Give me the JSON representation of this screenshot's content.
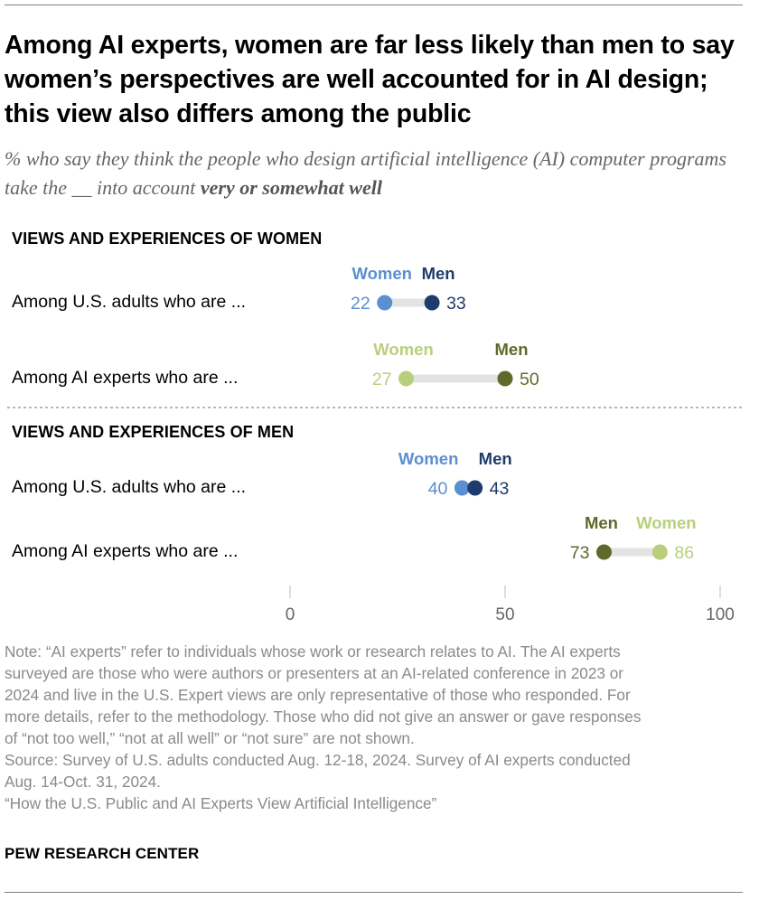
{
  "title": "Among AI experts, women are far less likely than men to say women’s perspectives are well accounted for in AI design; this view also differs among the public",
  "subtitle": {
    "prefix": "% who say they think the people who design artificial intelligence (AI) computer programs take the __ into account",
    "emphasis": "very or somewhat well"
  },
  "colors": {
    "public_women": "#5b8fd1",
    "public_men": "#1f3b6b",
    "experts_women": "#b9cf7c",
    "experts_men": "#5e6a2a",
    "track": "#e3e3e3",
    "divider": "#8c8c8c",
    "axis_text": "#666666"
  },
  "chart_data": {
    "type": "dot",
    "xlim": [
      0,
      100
    ],
    "x_ticks": [
      0,
      50,
      100
    ],
    "sections": [
      {
        "heading": "VIEWS AND EXPERIENCES OF WOMEN",
        "rows": [
          {
            "label": "Among U.S. adults who are ...",
            "group": "public",
            "points": [
              {
                "name": "Women",
                "value": 22
              },
              {
                "name": "Men",
                "value": 33
              }
            ]
          },
          {
            "label": "Among AI experts who are ...",
            "group": "experts",
            "points": [
              {
                "name": "Women",
                "value": 27
              },
              {
                "name": "Men",
                "value": 50
              }
            ]
          }
        ]
      },
      {
        "heading": "VIEWS AND EXPERIENCES OF MEN",
        "rows": [
          {
            "label": "Among U.S. adults who are ...",
            "group": "public",
            "points": [
              {
                "name": "Women",
                "value": 40
              },
              {
                "name": "Men",
                "value": 43
              }
            ]
          },
          {
            "label": "Among AI experts who are ...",
            "group": "experts",
            "points": [
              {
                "name": "Men",
                "value": 73
              },
              {
                "name": "Women",
                "value": 86
              }
            ]
          }
        ]
      }
    ]
  },
  "note_lines": [
    "Note: “AI experts” refer to individuals whose work or research relates to AI. The AI experts",
    "surveyed are those who were authors or presenters at an AI-related conference in 2023 or",
    "2024 and live in the U.S. Expert views are only representative of those who responded. For",
    "more details, refer to the methodology.  Those who did not give an answer or gave responses",
    "of “not too well,” “not at all well” or “not sure” are not shown.",
    "Source: Survey of U.S. adults conducted Aug. 12-18, 2024. Survey of AI experts conducted",
    "Aug. 14-Oct. 31, 2024.",
    "“How the U.S. Public and AI Experts View Artificial Intelligence”"
  ],
  "brand": "PEW RESEARCH CENTER"
}
